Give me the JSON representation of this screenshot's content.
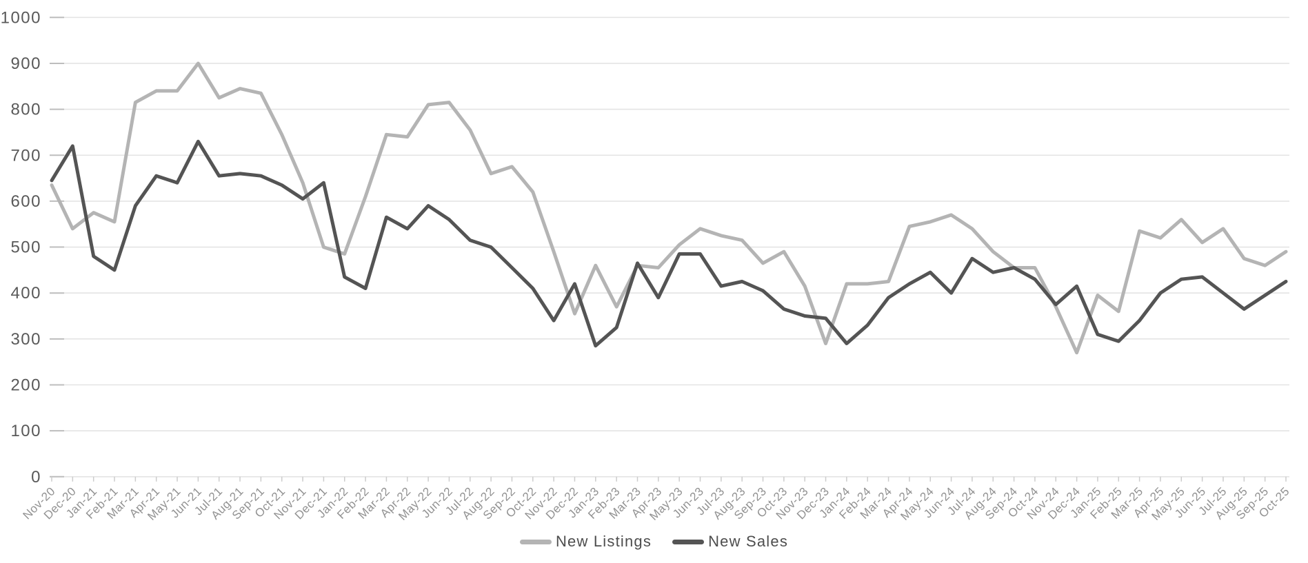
{
  "page": {
    "background": "#ffffff",
    "grid_color": "#e4e4e4",
    "axis_tick_color": "#cccccc",
    "y_label_color": "#595959",
    "x_label_color": "#919191"
  },
  "legend": {
    "items": [
      {
        "label": "New Listings",
        "color": "#b4b4b4"
      },
      {
        "label": "New Sales",
        "color": "#545454"
      }
    ]
  },
  "chart_data": {
    "type": "line",
    "title": "",
    "xlabel": "",
    "ylabel": "",
    "ylim": [
      0,
      1000
    ],
    "ytick_step": 100,
    "y_ticks": [
      0,
      100,
      200,
      300,
      400,
      500,
      600,
      700,
      800,
      900,
      1000
    ],
    "grid": "horizontal",
    "legend_position": "bottom-center",
    "categories": [
      "Nov-20",
      "Dec-20",
      "Jan-21",
      "Feb-21",
      "Mar-21",
      "Apr-21",
      "May-21",
      "Jun-21",
      "Jul-21",
      "Aug-21",
      "Sep-21",
      "Oct-21",
      "Nov-21",
      "Dec-21",
      "Jan-22",
      "Feb-22",
      "Mar-22",
      "Apr-22",
      "May-22",
      "Jun-22",
      "Jul-22",
      "Aug-22",
      "Sep-22",
      "Oct-22",
      "Nov-22",
      "Dec-22",
      "Jan-23",
      "Feb-23",
      "Mar-23",
      "Apr-23",
      "May-23",
      "Jun-23",
      "Jul-23",
      "Aug-23",
      "Sep-23",
      "Oct-23",
      "Nov-23",
      "Dec-23",
      "Jan-24",
      "Feb-24",
      "Mar-24",
      "Apr-24",
      "May-24",
      "Jun-24",
      "Jul-24",
      "Aug-24",
      "Sep-24",
      "Oct-24",
      "Nov-24",
      "Dec-24",
      "Jan-25",
      "Feb-25",
      "Mar-25",
      "Apr-25",
      "May-25",
      "Jun-25",
      "Jul-25",
      "Aug-25",
      "Sep-25",
      "Oct-25"
    ],
    "series": [
      {
        "name": "New Listings",
        "color": "#b4b4b4",
        "values": [
          635,
          540,
          575,
          555,
          815,
          840,
          840,
          900,
          825,
          845,
          835,
          745,
          640,
          500,
          485,
          610,
          745,
          740,
          810,
          815,
          755,
          660,
          675,
          620,
          490,
          355,
          460,
          370,
          460,
          455,
          505,
          540,
          525,
          515,
          465,
          490,
          415,
          290,
          420,
          420,
          425,
          545,
          555,
          570,
          540,
          490,
          455,
          455,
          370,
          270,
          395,
          360,
          535,
          520,
          560,
          510,
          540,
          475,
          460,
          490
        ]
      },
      {
        "name": "New Sales",
        "color": "#545454",
        "values": [
          645,
          720,
          480,
          450,
          590,
          655,
          640,
          730,
          655,
          660,
          655,
          635,
          605,
          640,
          435,
          410,
          565,
          540,
          590,
          560,
          515,
          500,
          455,
          410,
          340,
          420,
          285,
          325,
          465,
          390,
          485,
          485,
          415,
          425,
          405,
          365,
          350,
          345,
          290,
          330,
          390,
          420,
          445,
          400,
          475,
          445,
          455,
          430,
          375,
          415,
          310,
          295,
          340,
          400,
          430,
          435,
          400,
          365,
          395,
          425
        ]
      }
    ]
  }
}
